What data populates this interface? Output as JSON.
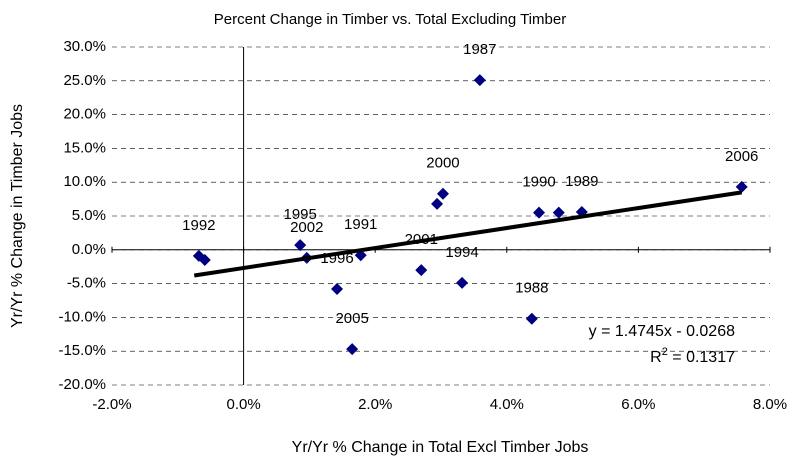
{
  "chart_data": {
    "type": "scatter",
    "title": "Percent Change in Timber vs. Total Excluding Timber",
    "x_label": "Yr/Yr % Change in Total Excl Timber Jobs",
    "y_label": "Yr/Yr % Change in Timber Jobs",
    "xlim": [
      -2,
      8
    ],
    "ylim": [
      -20,
      30
    ],
    "xticks": [
      {
        "value": -2,
        "label": "-2.0%"
      },
      {
        "value": 0,
        "label": "0.0%"
      },
      {
        "value": 2,
        "label": "2.0%"
      },
      {
        "value": 4,
        "label": "4.0%"
      },
      {
        "value": 6,
        "label": "6.0%"
      },
      {
        "value": 8,
        "label": "8.0%"
      }
    ],
    "yticks": [
      {
        "value": -20,
        "label": "-20.0%"
      },
      {
        "value": -15,
        "label": "-15.0%"
      },
      {
        "value": -10,
        "label": "-10.0%"
      },
      {
        "value": -5,
        "label": "-5.0%"
      },
      {
        "value": 0,
        "label": "0.0%"
      },
      {
        "value": 5,
        "label": "5.0%"
      },
      {
        "value": 10,
        "label": "10.0%"
      },
      {
        "value": 15,
        "label": "15.0%"
      },
      {
        "value": 20,
        "label": "20.0%"
      },
      {
        "value": 25,
        "label": "25.0%"
      },
      {
        "value": 30,
        "label": "30.0%"
      }
    ],
    "grid": true,
    "series": [
      {
        "color": "#000080",
        "x": [
          -0.68,
          -0.59,
          0.86,
          0.96,
          1.42,
          1.65,
          1.78,
          2.7,
          3.32,
          2.94,
          3.03,
          3.59,
          4.38,
          4.49,
          4.79,
          5.14,
          7.57
        ],
        "values": [
          -0.9,
          -1.5,
          0.7,
          -1.2,
          -5.8,
          -14.7,
          -0.8,
          -3.0,
          -4.9,
          6.8,
          8.3,
          25.1,
          -10.2,
          5.5,
          5.5,
          5.6,
          9.3
        ],
        "labels": [
          "1992",
          null,
          "1995",
          "2002",
          "1996",
          "2005",
          "1991",
          "2001",
          "1994",
          null,
          "2000",
          "1987",
          "1988",
          "1990",
          null,
          "1989",
          "2006"
        ]
      }
    ],
    "trendline": {
      "color": "#000000",
      "x": [
        -0.75,
        7.57
      ],
      "values": [
        -3.8,
        8.5
      ]
    },
    "equation": "y = 1.4745x - 0.0268",
    "r2_prefix": "R",
    "r2_sup": "2",
    "r2_rest": " = 0.1317"
  }
}
